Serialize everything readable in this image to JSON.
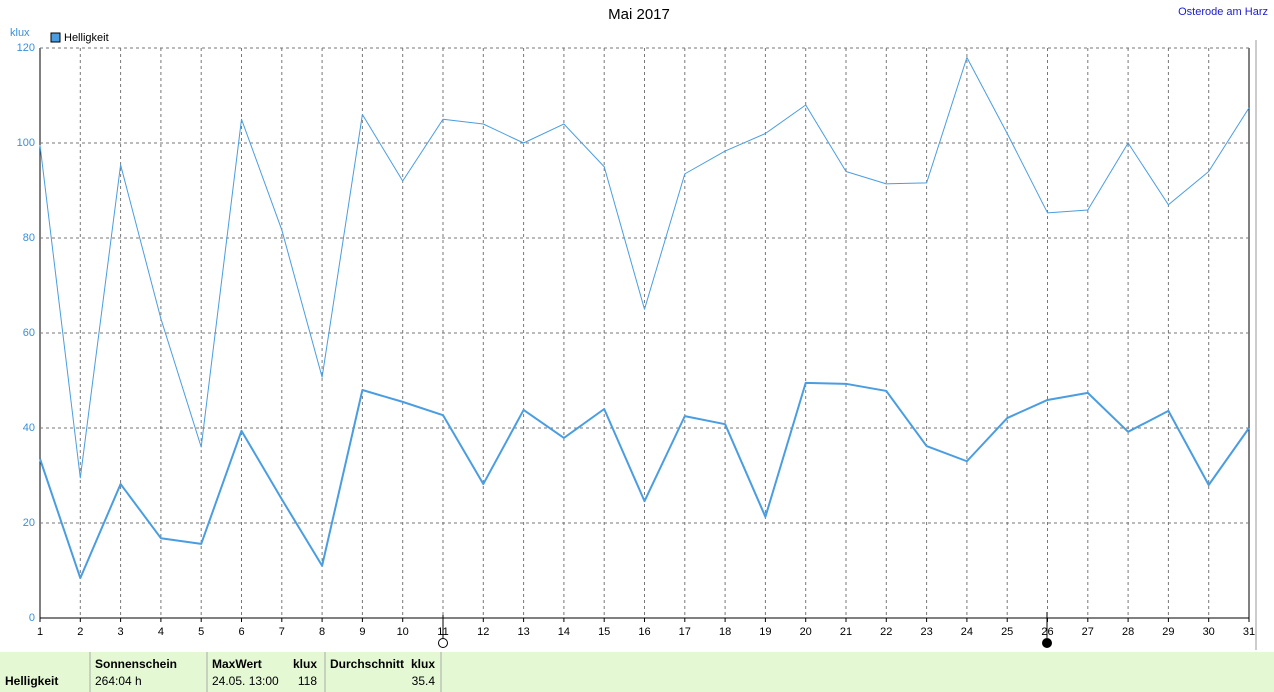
{
  "chart_data": {
    "type": "line",
    "title": "Mai 2017",
    "annotation": "Osterode am Harz",
    "ylabel": "klux",
    "legend": "Helligkeit",
    "x": [
      1,
      2,
      3,
      4,
      5,
      6,
      7,
      8,
      9,
      10,
      11,
      12,
      13,
      14,
      15,
      16,
      17,
      18,
      19,
      20,
      21,
      22,
      23,
      24,
      25,
      26,
      27,
      28,
      29,
      30,
      31
    ],
    "series": [
      {
        "color": "#4a9de0",
        "width": 1,
        "values": [
          99.6,
          29.5,
          95.4,
          63,
          36,
          105,
          81.7,
          50.7,
          106,
          92,
          105,
          104,
          100,
          104,
          95,
          65,
          93.5,
          98.3,
          102,
          108,
          94,
          91.4,
          91.6,
          118,
          102,
          85.3,
          85.9,
          100,
          87,
          94,
          107.4
        ]
      },
      {
        "color": "#4a9de0",
        "width": 2,
        "values": [
          33.5,
          8.4,
          28.2,
          16.8,
          15.6,
          39.4,
          25,
          11,
          48,
          45.5,
          42.7,
          28.2,
          43.8,
          37.9,
          44,
          24.6,
          42.5,
          40.8,
          21.3,
          49.5,
          49.3,
          47.8,
          36.2,
          33,
          42.1,
          45.9,
          47.4,
          39.2,
          43.6,
          28,
          40
        ]
      }
    ],
    "xlim": [
      1,
      31
    ],
    "xticks": [
      1,
      2,
      3,
      4,
      5,
      6,
      7,
      8,
      9,
      10,
      11,
      12,
      13,
      14,
      15,
      16,
      17,
      18,
      19,
      20,
      21,
      22,
      23,
      24,
      25,
      26,
      27,
      28,
      29,
      30,
      31
    ],
    "ylim": [
      0,
      120
    ],
    "yticks": [
      0,
      20,
      40,
      60,
      80,
      100,
      120
    ],
    "grid": true
  },
  "footer": {
    "row_label": "Helligkeit",
    "sun_label": "Sonnenschein",
    "sun_value": "264:04 h",
    "max_label": "MaxWert",
    "max_unit": "klux",
    "max_date": "24.05.  13:00",
    "max_value": 118,
    "avg_label": "Durchschnitt",
    "avg_unit": "klux",
    "avg_value": 35.4
  }
}
